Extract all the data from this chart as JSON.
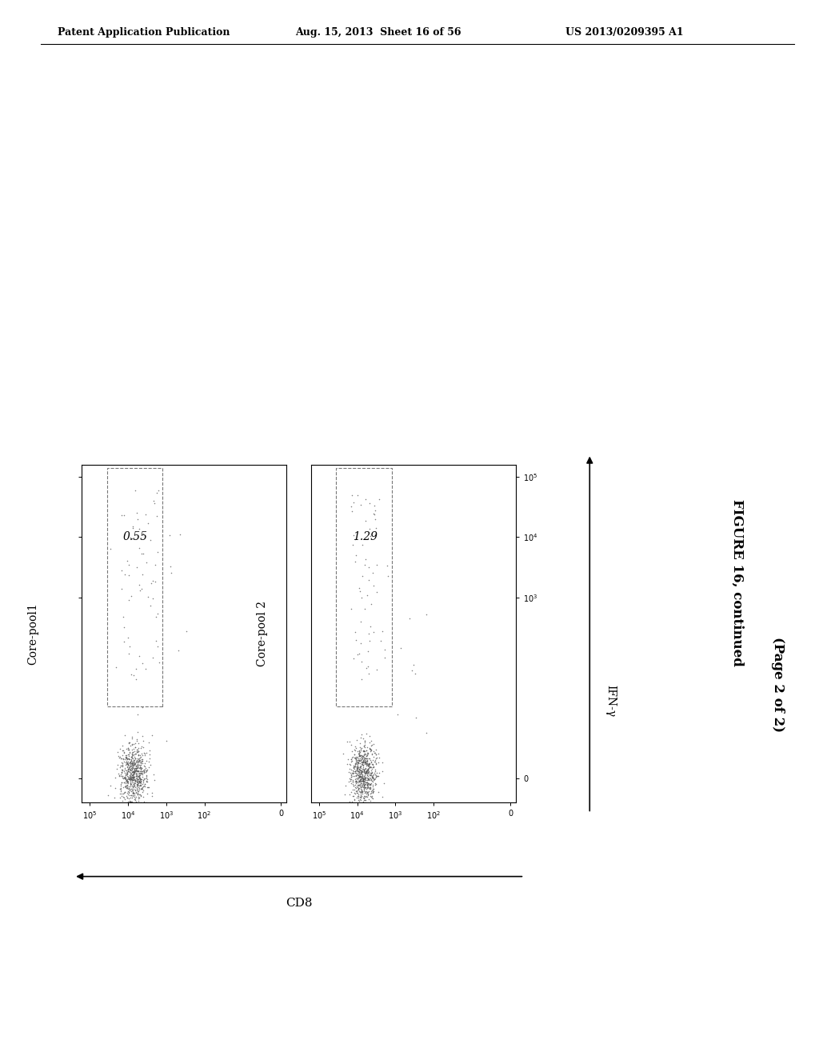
{
  "header_left": "Patent Application Publication",
  "header_mid": "Aug. 15, 2013  Sheet 16 of 56",
  "header_right": "US 2013/0209395 A1",
  "figure_label": "FIGURE 16, continued",
  "figure_sublabel": "(Page 2 of 2)",
  "panel1_title": "Core-pool1",
  "panel2_title": "Core-pool 2",
  "panel1_value": "0.55",
  "panel2_value": "1.29",
  "xaxis_label": "CD8",
  "yaxis_label": "IFN-γ",
  "background_color": "#ffffff",
  "panel_bg": "#ffffff",
  "text_color": "#000000",
  "dot_color": "#555555",
  "gate_color": "#777777"
}
